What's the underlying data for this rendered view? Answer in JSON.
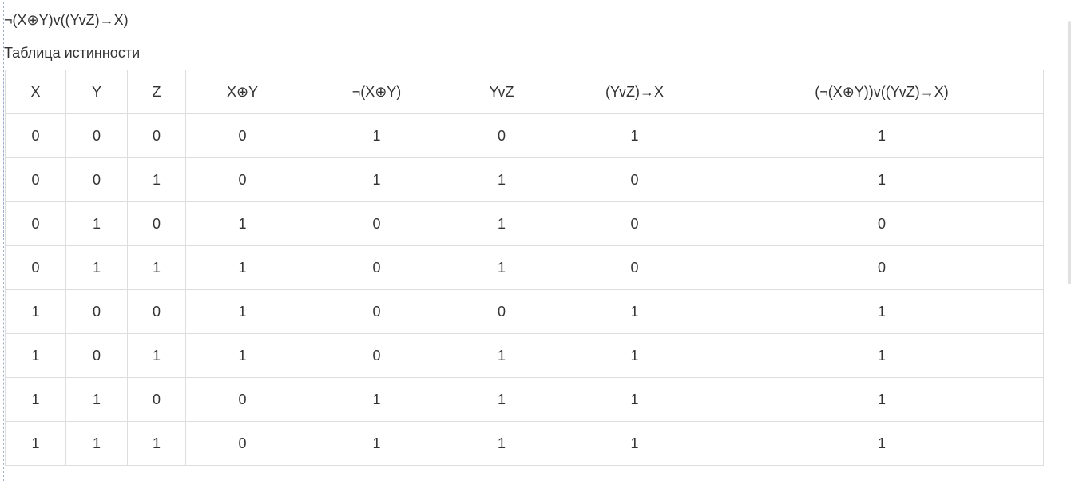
{
  "formula": "¬(X⊕Y)v((YvZ)→X)",
  "caption": "Таблица истинности",
  "table": {
    "headers": [
      "X",
      "Y",
      "Z",
      "X⊕Y",
      "¬(X⊕Y)",
      "YvZ",
      "(YvZ)→X",
      "(¬(X⊕Y))v((YvZ)→X)"
    ],
    "rows": [
      [
        "0",
        "0",
        "0",
        "0",
        "1",
        "0",
        "1",
        "1"
      ],
      [
        "0",
        "0",
        "1",
        "0",
        "1",
        "1",
        "0",
        "1"
      ],
      [
        "0",
        "1",
        "0",
        "1",
        "0",
        "1",
        "0",
        "0"
      ],
      [
        "0",
        "1",
        "1",
        "1",
        "0",
        "1",
        "0",
        "0"
      ],
      [
        "1",
        "0",
        "0",
        "1",
        "0",
        "0",
        "1",
        "1"
      ],
      [
        "1",
        "0",
        "1",
        "1",
        "0",
        "1",
        "1",
        "1"
      ],
      [
        "1",
        "1",
        "0",
        "0",
        "1",
        "1",
        "1",
        "1"
      ],
      [
        "1",
        "1",
        "1",
        "0",
        "1",
        "1",
        "1",
        "1"
      ]
    ]
  }
}
